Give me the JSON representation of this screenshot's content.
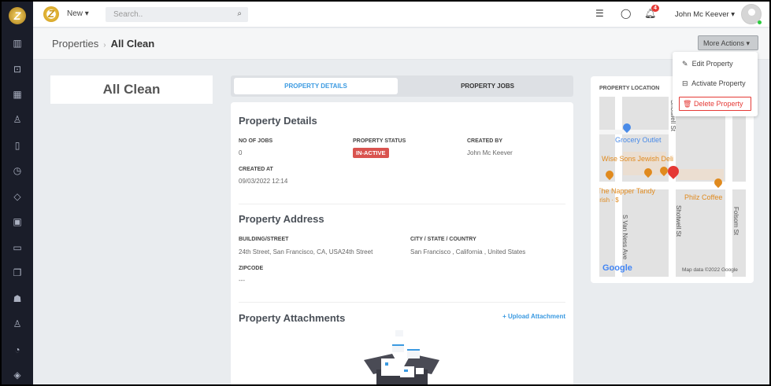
{
  "topbar": {
    "new_label": "New",
    "search_placeholder": "Search..",
    "notification_count": "4",
    "user_name": "John Mc Keever"
  },
  "sidebar": {
    "items": [
      "dashboard",
      "jobs",
      "calendar",
      "customers",
      "map",
      "time",
      "tags",
      "calculator",
      "wallet",
      "documents",
      "inventory",
      "users",
      "reports",
      "layers"
    ]
  },
  "breadcrumb": {
    "parent": "Properties",
    "current": "All Clean"
  },
  "more_actions": {
    "label": "More Actions",
    "items": [
      {
        "label": "Edit Property",
        "icon": "edit-icon"
      },
      {
        "label": "Activate Property",
        "icon": "activate-icon"
      },
      {
        "label": "Delete Property",
        "icon": "trash-icon"
      }
    ]
  },
  "property_name": "All Clean",
  "tabs": [
    {
      "label": "PROPERTY DETAILS",
      "active": true
    },
    {
      "label": "PROPERTY JOBS",
      "active": false
    }
  ],
  "details": {
    "title": "Property Details",
    "no_of_jobs_label": "NO OF JOBS",
    "no_of_jobs": "0",
    "status_label": "PROPERTY STATUS",
    "status": "IN-ACTIVE",
    "status_color": "#d9534f",
    "created_by_label": "CREATED BY",
    "created_by": "John Mc Keever",
    "created_at_label": "CREATED AT",
    "created_at": "09/03/2022 12:14"
  },
  "address": {
    "title": "Property Address",
    "street_label": "BUILDING/STREET",
    "street": "24th Street, San Francisco, CA, USA24th Street",
    "city_label": "CITY / STATE / COUNTRY",
    "city": "San Francisco , California , United States",
    "zip_label": "ZIPCODE",
    "zip": "---"
  },
  "attachments": {
    "title": "Property Attachments",
    "upload_label": "+ Upload Attachment"
  },
  "location": {
    "title": "PROPERTY LOCATION",
    "map_labels": {
      "shotwell_top": "Shotwell St",
      "grocery": "Grocery Outlet",
      "wise_sons": "Wise Sons Jewish Deli",
      "napper": "The Napper Tandy",
      "irish": "Irish · $",
      "philz": "Philz Coffee",
      "shotwell": "Shotwell St",
      "folsom": "Folsom St",
      "van_ness": "S Van Ness Ave",
      "google": "Google",
      "map_data": "Map data ©2022 Google"
    }
  }
}
